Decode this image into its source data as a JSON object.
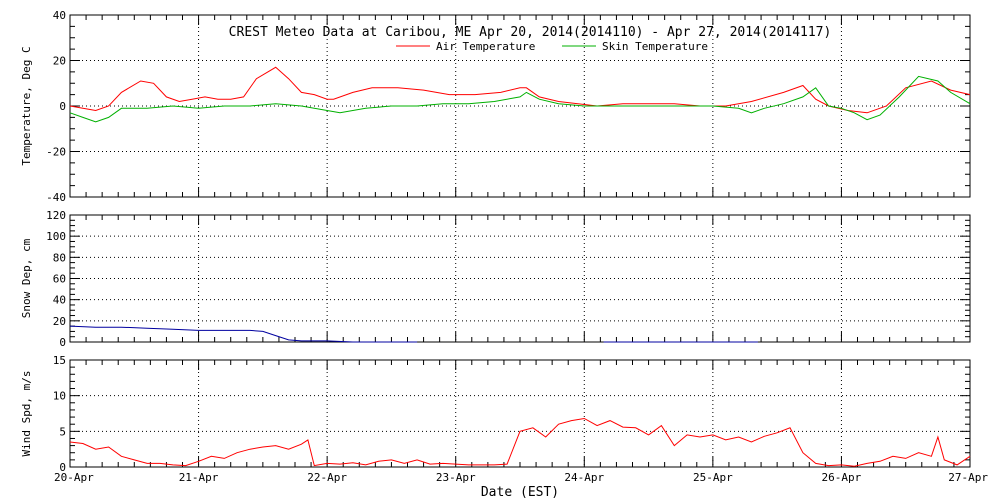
{
  "chart_data": {
    "type": "line",
    "title": "CREST Meteo Data at Caribou, ME   Apr 20, 2014(2014110) - Apr 27, 2014(2014117)",
    "xlabel": "Date (EST)",
    "x_ticks": [
      "20-Apr",
      "21-Apr",
      "22-Apr",
      "23-Apr",
      "24-Apr",
      "25-Apr",
      "26-Apr",
      "27-Apr"
    ],
    "x_range_days": [
      0,
      7
    ],
    "grid": true,
    "legend": "top-center",
    "panels": [
      {
        "ylabel": "Temperature, Deg C",
        "ylim": [
          -40,
          40
        ],
        "y_ticks": [
          -40,
          -20,
          0,
          20,
          40
        ],
        "series": [
          {
            "name": "Air Temperature",
            "color": "#ff0000",
            "x": [
              0,
              0.1,
              0.2,
              0.3,
              0.4,
              0.55,
              0.65,
              0.75,
              0.85,
              0.95,
              1.05,
              1.15,
              1.25,
              1.35,
              1.45,
              1.6,
              1.7,
              1.8,
              1.9,
              2.0,
              2.05,
              2.2,
              2.35,
              2.55,
              2.75,
              2.95,
              3.15,
              3.35,
              3.5,
              3.55,
              3.65,
              3.8,
              3.95,
              4.1,
              4.3,
              4.5,
              4.7,
              4.9,
              5.1,
              5.3,
              5.55,
              5.7,
              5.8,
              5.9,
              6.05,
              6.2,
              6.35,
              6.5,
              6.7,
              6.85,
              7.0
            ],
            "y": [
              0,
              -1,
              -2,
              0,
              6,
              11,
              10,
              4,
              2,
              3,
              4,
              3,
              3,
              4,
              12,
              17,
              12,
              6,
              5,
              3,
              3,
              6,
              8,
              8,
              7,
              5,
              5,
              6,
              8,
              8,
              4,
              2,
              1,
              0,
              1,
              1,
              1,
              0,
              0,
              2,
              6,
              9,
              3,
              0,
              -2,
              -3,
              0,
              8,
              11,
              7,
              5
            ]
          },
          {
            "name": "Skin Temperature",
            "color": "#00b000",
            "x": [
              0,
              0.1,
              0.2,
              0.3,
              0.4,
              0.6,
              0.8,
              1.0,
              1.2,
              1.4,
              1.6,
              1.8,
              2.0,
              2.1,
              2.3,
              2.5,
              2.7,
              2.9,
              3.1,
              3.3,
              3.5,
              3.55,
              3.65,
              3.8,
              4.0,
              4.2,
              4.4,
              4.6,
              4.8,
              5.0,
              5.2,
              5.3,
              5.4,
              5.55,
              5.7,
              5.8,
              5.9,
              6.0,
              6.1,
              6.2,
              6.3,
              6.45,
              6.6,
              6.75,
              6.85,
              7.0
            ],
            "y": [
              -3,
              -5,
              -7,
              -5,
              -1,
              -1,
              0,
              -1,
              0,
              0,
              1,
              0,
              -2,
              -3,
              -1,
              0,
              0,
              1,
              1,
              2,
              4,
              6,
              3,
              1,
              0,
              0,
              0,
              0,
              0,
              0,
              -1,
              -3,
              -1,
              1,
              4,
              8,
              0,
              -1,
              -3,
              -6,
              -4,
              4,
              13,
              11,
              6,
              1
            ]
          }
        ]
      },
      {
        "ylabel": "Snow Dep, cm",
        "ylim": [
          0,
          120
        ],
        "y_ticks": [
          0,
          20,
          40,
          60,
          80,
          100,
          120
        ],
        "series": [
          {
            "name": "",
            "color": "#0000a0",
            "segments": [
              {
                "x": [
                  0,
                  0.2,
                  0.4,
                  0.6,
                  0.8,
                  1.0,
                  1.2,
                  1.4,
                  1.5,
                  1.6,
                  1.7,
                  1.8,
                  2.0,
                  2.2,
                  2.4,
                  2.6,
                  2.7
                ],
                "y": [
                  15,
                  14,
                  14,
                  13,
                  12,
                  11,
                  11,
                  11,
                  10,
                  6,
                  2,
                  1,
                  1,
                  0,
                  0,
                  0,
                  0
                ]
              },
              {
                "x": [
                  4.15,
                  4.5,
                  5.0,
                  5.35
                ],
                "y": [
                  0,
                  0,
                  0,
                  0
                ]
              }
            ]
          }
        ]
      },
      {
        "ylabel": "Wind Spd, m/s",
        "ylim": [
          0,
          15
        ],
        "y_ticks": [
          0,
          5,
          10,
          15
        ],
        "series": [
          {
            "name": "",
            "color": "#ff0000",
            "x": [
              0,
              0.1,
              0.2,
              0.3,
              0.4,
              0.5,
              0.6,
              0.7,
              0.8,
              0.9,
              1.0,
              1.1,
              1.2,
              1.3,
              1.4,
              1.5,
              1.6,
              1.7,
              1.8,
              1.85,
              1.9,
              2.0,
              2.1,
              2.2,
              2.3,
              2.4,
              2.5,
              2.6,
              2.7,
              2.8,
              2.9,
              3.0,
              3.1,
              3.2,
              3.3,
              3.4,
              3.5,
              3.6,
              3.7,
              3.8,
              3.9,
              4.0,
              4.1,
              4.2,
              4.3,
              4.4,
              4.5,
              4.6,
              4.7,
              4.8,
              4.9,
              5.0,
              5.1,
              5.2,
              5.3,
              5.4,
              5.5,
              5.6,
              5.7,
              5.8,
              5.9,
              6.0,
              6.1,
              6.2,
              6.3,
              6.4,
              6.5,
              6.6,
              6.7,
              6.75,
              6.8,
              6.9,
              7.0
            ],
            "y": [
              3.5,
              3.3,
              2.5,
              2.8,
              1.5,
              1.0,
              0.5,
              0.5,
              0.3,
              0.2,
              0.8,
              1.5,
              1.2,
              2.0,
              2.5,
              2.8,
              3.0,
              2.5,
              3.2,
              3.8,
              0.2,
              0.5,
              0.4,
              0.6,
              0.3,
              0.8,
              1.0,
              0.5,
              1.0,
              0.4,
              0.5,
              0.4,
              0.3,
              0.3,
              0.3,
              0.4,
              5.0,
              5.5,
              4.2,
              6.0,
              6.5,
              6.8,
              5.8,
              6.5,
              5.6,
              5.5,
              4.5,
              5.8,
              3.0,
              4.5,
              4.2,
              4.5,
              3.8,
              4.2,
              3.5,
              4.3,
              4.8,
              5.5,
              2.0,
              0.5,
              0.2,
              0.3,
              0.1,
              0.5,
              0.8,
              1.5,
              1.2,
              2.0,
              1.5,
              4.2,
              1.0,
              0.3,
              1.5
            ]
          }
        ]
      }
    ]
  }
}
